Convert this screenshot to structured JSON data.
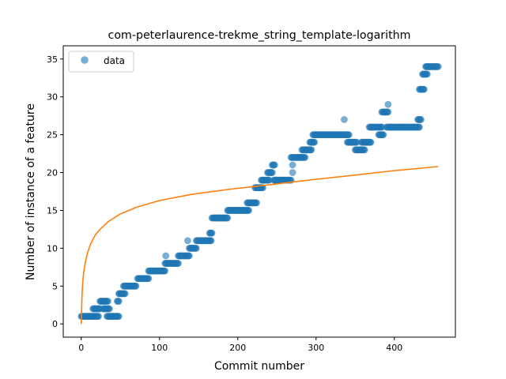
{
  "chart_data": {
    "type": "scatter",
    "title": "com-peterlaurence-trekme_string_template-logarithm",
    "xlabel": "Commit number",
    "ylabel": "Number of instance of a feature",
    "xlim": [
      -23,
      478
    ],
    "ylim": [
      -1.75,
      36.75
    ],
    "xticks": [
      0,
      100,
      200,
      300,
      400
    ],
    "yticks": [
      0,
      5,
      10,
      15,
      20,
      25,
      30,
      35
    ],
    "grid": false,
    "legend": {
      "placement": "top-left",
      "entries": [
        "data"
      ]
    },
    "colors": {
      "data": "#1f77b4",
      "fit": "#ff7f0e"
    },
    "series": [
      {
        "name": "data",
        "kind": "points",
        "segments": [
          {
            "x_start": 0,
            "x_end": 22,
            "y": 1
          },
          {
            "x_start": 15,
            "x_end": 24,
            "y": 2
          },
          {
            "x_start": 24,
            "x_end": 34,
            "y": 3
          },
          {
            "x_start": 28,
            "x_end": 36,
            "y": 2
          },
          {
            "x_start": 33,
            "x_end": 48,
            "y": 1
          },
          {
            "x_start": 46,
            "x_end": 48,
            "y": 3
          },
          {
            "x_start": 48,
            "x_end": 56,
            "y": 4
          },
          {
            "x_start": 54,
            "x_end": 70,
            "y": 5
          },
          {
            "x_start": 72,
            "x_end": 86,
            "y": 6
          },
          {
            "x_start": 86,
            "x_end": 107,
            "y": 7
          },
          {
            "x_start": 107,
            "x_end": 124,
            "y": 8
          },
          {
            "x_start": 124,
            "x_end": 138,
            "y": 9
          },
          {
            "x_start": 138,
            "x_end": 147,
            "y": 10
          },
          {
            "x_start": 147,
            "x_end": 166,
            "y": 11
          },
          {
            "x_start": 164,
            "x_end": 167,
            "y": 12
          },
          {
            "x_start": 167,
            "x_end": 187,
            "y": 14
          },
          {
            "x_start": 187,
            "x_end": 214,
            "y": 15
          },
          {
            "x_start": 212,
            "x_end": 224,
            "y": 16
          },
          {
            "x_start": 222,
            "x_end": 232,
            "y": 18
          },
          {
            "x_start": 230,
            "x_end": 240,
            "y": 19
          },
          {
            "x_start": 238,
            "x_end": 244,
            "y": 20
          },
          {
            "x_start": 244,
            "x_end": 247,
            "y": 21
          },
          {
            "x_start": 246,
            "x_end": 268,
            "y": 19
          },
          {
            "x_start": 268,
            "x_end": 286,
            "y": 22
          },
          {
            "x_start": 282,
            "x_end": 294,
            "y": 23
          },
          {
            "x_start": 292,
            "x_end": 298,
            "y": 24
          },
          {
            "x_start": 296,
            "x_end": 342,
            "y": 25
          },
          {
            "x_start": 340,
            "x_end": 352,
            "y": 24
          },
          {
            "x_start": 350,
            "x_end": 362,
            "y": 23
          },
          {
            "x_start": 358,
            "x_end": 370,
            "y": 24
          },
          {
            "x_start": 368,
            "x_end": 384,
            "y": 26
          },
          {
            "x_start": 380,
            "x_end": 386,
            "y": 25
          },
          {
            "x_start": 384,
            "x_end": 392,
            "y": 28
          },
          {
            "x_start": 390,
            "x_end": 432,
            "y": 26
          },
          {
            "x_start": 430,
            "x_end": 434,
            "y": 27
          },
          {
            "x_start": 432,
            "x_end": 438,
            "y": 31
          },
          {
            "x_start": 436,
            "x_end": 442,
            "y": 33
          },
          {
            "x_start": 440,
            "x_end": 456,
            "y": 34
          }
        ],
        "outliers": [
          {
            "x": 108,
            "y": 9
          },
          {
            "x": 136,
            "y": 11
          },
          {
            "x": 270,
            "y": 20
          },
          {
            "x": 270,
            "y": 21
          },
          {
            "x": 336,
            "y": 27
          },
          {
            "x": 392,
            "y": 29
          },
          {
            "x": 395,
            "y": 26
          }
        ]
      },
      {
        "kind": "fitted-logarithmic-curve",
        "points": [
          [
            0,
            0
          ],
          [
            1,
            3.87
          ],
          [
            2,
            5.61
          ],
          [
            3,
            6.68
          ],
          [
            5,
            8.07
          ],
          [
            8,
            9.38
          ],
          [
            12,
            10.6
          ],
          [
            18,
            11.77
          ],
          [
            25,
            12.6
          ],
          [
            35,
            13.56
          ],
          [
            50,
            14.53
          ],
          [
            70,
            15.4
          ],
          [
            100,
            16.3
          ],
          [
            140,
            17.1
          ],
          [
            190,
            17.8
          ],
          [
            240,
            18.38
          ],
          [
            290,
            19.0
          ],
          [
            340,
            19.55
          ],
          [
            400,
            20.25
          ],
          [
            456,
            20.8
          ]
        ]
      }
    ]
  }
}
